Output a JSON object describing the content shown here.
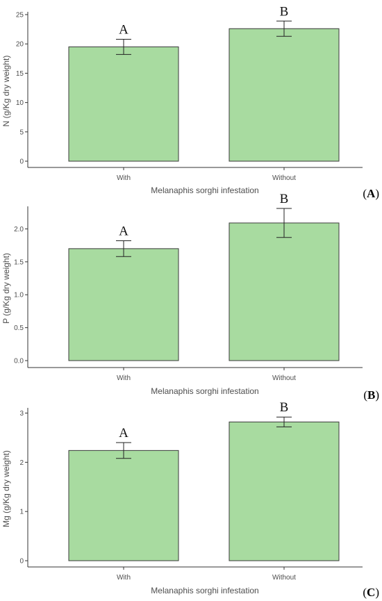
{
  "chart_data": [
    {
      "type": "bar",
      "panel_label": "(A)",
      "panel_letter": "A",
      "categories": [
        "With",
        "Without"
      ],
      "values": [
        19.5,
        22.6
      ],
      "errors": [
        1.3,
        1.3
      ],
      "significance": [
        "A",
        "B"
      ],
      "xlabel": "Melanaphis sorghi infestation",
      "ylabel": "N (g/Kg dry weight)",
      "ylim": [
        0,
        25
      ],
      "yticks": [
        0,
        5,
        10,
        15,
        20,
        25
      ],
      "bar_color": "#a8dba0",
      "grid": false
    },
    {
      "type": "bar",
      "panel_label": "(B)",
      "panel_letter": "B",
      "categories": [
        "With",
        "Without"
      ],
      "values": [
        1.7,
        2.09
      ],
      "errors": [
        0.12,
        0.22
      ],
      "significance": [
        "A",
        "B"
      ],
      "xlabel": "Melanaphis sorghi infestation",
      "ylabel": "P (g/Kg dry weight)",
      "ylim": [
        0,
        2.3
      ],
      "yticks": [
        0.0,
        0.5,
        1.0,
        1.5,
        2.0
      ],
      "ytick_labels": [
        "0.0",
        "0.5",
        "1.0",
        "1.5",
        "2.0"
      ],
      "bar_color": "#a8dba0",
      "grid": false
    },
    {
      "type": "bar",
      "panel_label": "(C)",
      "panel_letter": "C",
      "categories": [
        "With",
        "Without"
      ],
      "values": [
        2.24,
        2.82
      ],
      "errors": [
        0.16,
        0.1
      ],
      "significance": [
        "A",
        "B"
      ],
      "xlabel": "Melanaphis sorghi infestation",
      "ylabel": "Mg (g/Kg dry weight)",
      "ylim": [
        0,
        3.05
      ],
      "yticks": [
        0,
        1,
        2,
        3
      ],
      "bar_color": "#a8dba0",
      "grid": false
    }
  ]
}
